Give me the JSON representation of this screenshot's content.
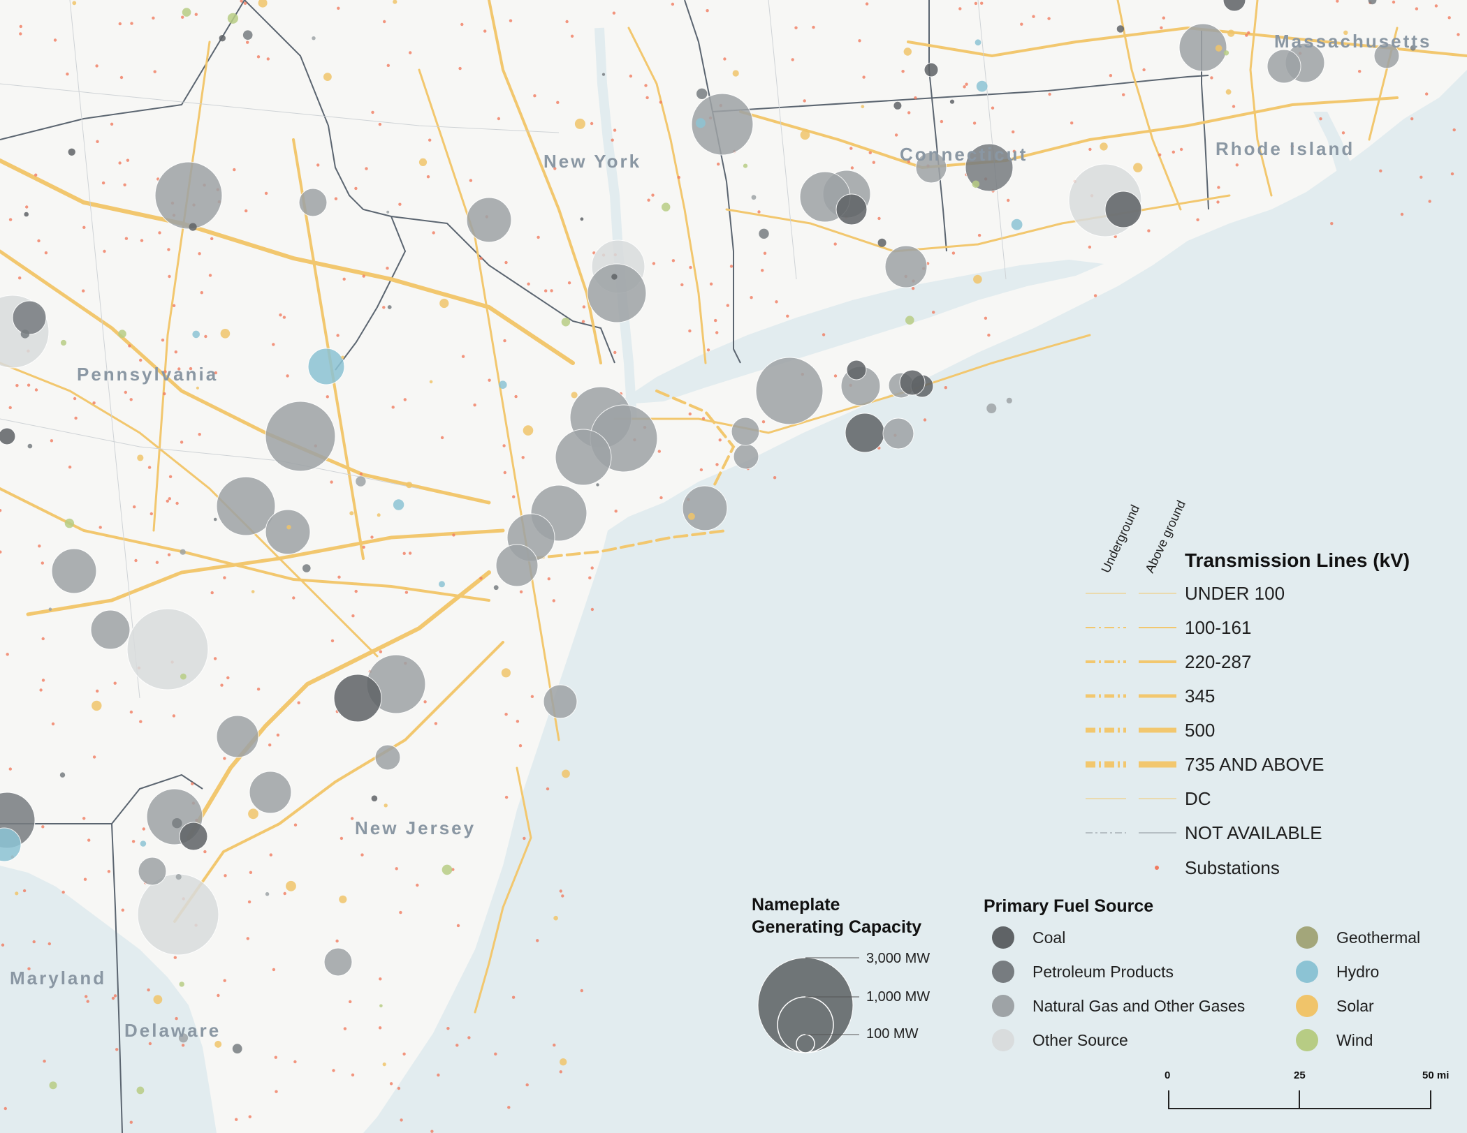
{
  "colors": {
    "water": "#e2ecef",
    "land": "#f7f7f5",
    "transmission": "#f2c76e",
    "substation": "#f07a5f",
    "border": "#5b6570",
    "coal": "#5f6366",
    "petroleum": "#777c80",
    "gas": "#9ea3a6",
    "other": "#d9dcdd",
    "geothermal": "#a3a67a",
    "hydro": "#8cc3d4",
    "solar": "#f0c46a",
    "wind": "#b7cc84"
  },
  "states": [
    {
      "name": "Pennsylvania"
    },
    {
      "name": "New York"
    },
    {
      "name": "Connecticut"
    },
    {
      "name": "Massachusetts"
    },
    {
      "name": "Rhode Island"
    },
    {
      "name": "New Jersey"
    },
    {
      "name": "Maryland"
    },
    {
      "name": "Delaware"
    }
  ],
  "legend": {
    "transmission": {
      "title": "Transmission Lines (kV)",
      "underground_label": "Underground",
      "aboveground_label": "Above ground",
      "items": [
        {
          "label": "UNDER 100",
          "weight": 1
        },
        {
          "label": "100-161",
          "weight": 2
        },
        {
          "label": "220-287",
          "weight": 4
        },
        {
          "label": "345",
          "weight": 5
        },
        {
          "label": "500",
          "weight": 7
        },
        {
          "label": "735 AND ABOVE",
          "weight": 9
        },
        {
          "label": "DC",
          "weight": 1
        },
        {
          "label": "NOT AVAILABLE",
          "weight": 1
        }
      ],
      "substations_label": "Substations"
    },
    "capacity": {
      "title_line1": "Nameplate",
      "title_line2": "Generating Capacity",
      "levels": [
        "3,000 MW",
        "1,000 MW",
        "100 MW"
      ]
    },
    "fuel": {
      "title": "Primary Fuel Source",
      "items": [
        {
          "label": "Coal",
          "color": "#5f6366"
        },
        {
          "label": "Petroleum Products",
          "color": "#777c80"
        },
        {
          "label": "Natural Gas and Other Gases",
          "color": "#9ea3a6"
        },
        {
          "label": "Other Source",
          "color": "#d9dcdd"
        },
        {
          "label": "Geothermal",
          "color": "#a3a67a"
        },
        {
          "label": "Hydro",
          "color": "#8cc3d4"
        },
        {
          "label": "Solar",
          "color": "#f0c46a"
        },
        {
          "label": "Wind",
          "color": "#b7cc84"
        }
      ]
    },
    "scale": {
      "ticks": [
        "0",
        "25",
        "50 mi"
      ]
    }
  }
}
